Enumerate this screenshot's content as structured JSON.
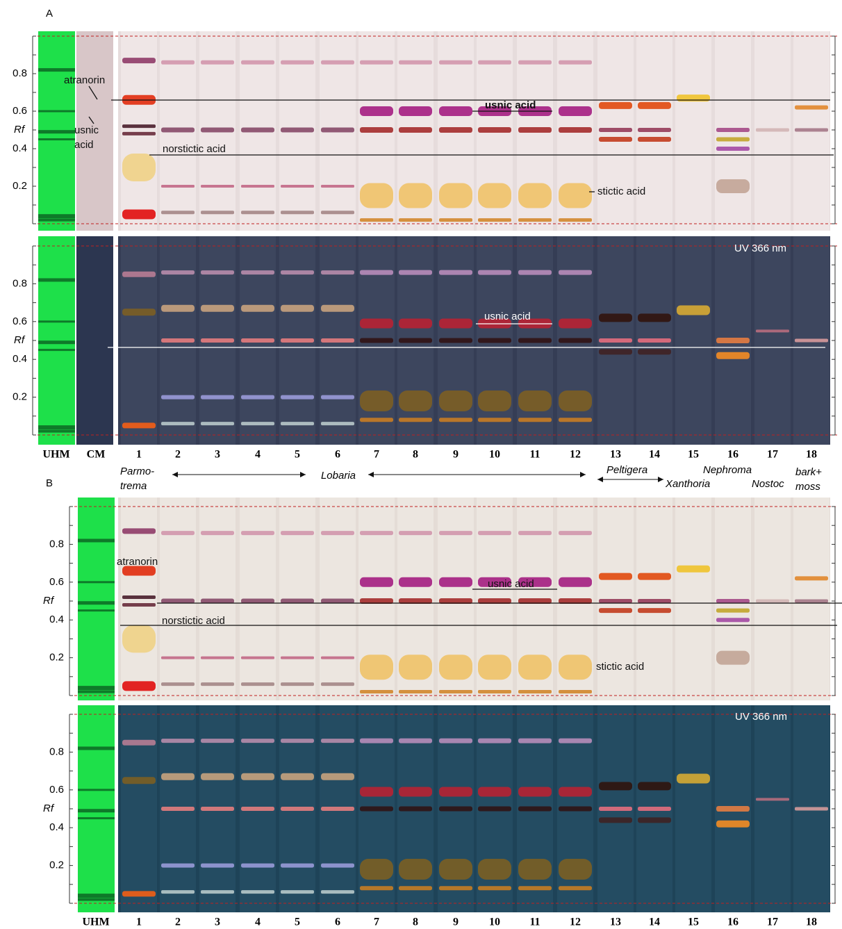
{
  "figure": {
    "panels": [
      {
        "label": "A",
        "plates": [
          {
            "rf_label": "Rf",
            "ticks": [
              "0.2",
              "0.4",
              "0.6",
              "0.8"
            ],
            "annotations": [
              "atranorin",
              "usnic",
              "acid",
              "norstictic acid",
              "usnic acid",
              "stictic acid"
            ]
          },
          {
            "rf_label": "Rf",
            "ticks": [
              "0.2",
              "0.4",
              "0.6",
              "0.8"
            ],
            "annotations": [
              "UV 366 nm",
              "usnic acid"
            ]
          }
        ],
        "lane_labels": [
          "UHM",
          "CM",
          "1",
          "2",
          "3",
          "4",
          "5",
          "6",
          "7",
          "8",
          "9",
          "10",
          "11",
          "12",
          "13",
          "14",
          "15",
          "16",
          "17",
          "18"
        ],
        "genus_labels": [
          "Parmo-",
          "trema",
          "Lobaria",
          "Peltigera",
          "Xanthoria",
          "Nephroma",
          "Nostoc",
          "bark+",
          "moss"
        ]
      },
      {
        "label": "B",
        "plates": [
          {
            "rf_label": "Rf",
            "ticks": [
              "0.2",
              "0.4",
              "0.6",
              "0.8"
            ],
            "annotations": [
              "atranorin",
              "usnic acid",
              "norstictic acid",
              "stictic acid"
            ]
          },
          {
            "rf_label": "Rf",
            "ticks": [
              "0.2",
              "0.4",
              "0.6",
              "0.8"
            ],
            "annotations": [
              "UV 366 nm"
            ]
          }
        ],
        "lane_labels": [
          "UHM",
          "1",
          "2",
          "3",
          "4",
          "5",
          "6",
          "7",
          "8",
          "9",
          "10",
          "11",
          "12",
          "13",
          "14",
          "15",
          "16",
          "17",
          "18"
        ]
      }
    ]
  }
}
